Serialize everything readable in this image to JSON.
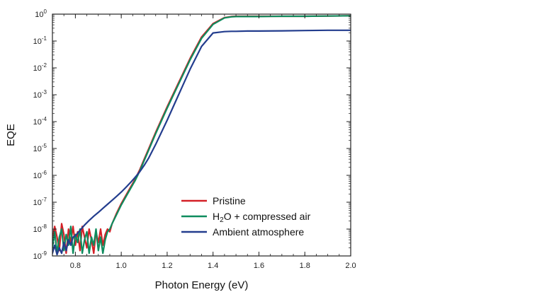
{
  "chart_data": {
    "type": "line",
    "xlabel": "Photon Energy (eV)",
    "ylabel": "EQE",
    "xlim": [
      0.7,
      2.0
    ],
    "ylim_log10": [
      -9,
      0
    ],
    "yscale": "log",
    "x_ticks": [
      {
        "value": 0.8,
        "label": "0.8"
      },
      {
        "value": 1.0,
        "label": "1.0"
      },
      {
        "value": 1.2,
        "label": "1.2"
      },
      {
        "value": 1.4,
        "label": "1.4"
      },
      {
        "value": 1.6,
        "label": "1.6"
      },
      {
        "value": 1.8,
        "label": "1.8"
      },
      {
        "value": 2.0,
        "label": "2.0"
      }
    ],
    "y_ticks": [
      {
        "exp": 0,
        "base": "10",
        "sup": "0"
      },
      {
        "exp": -1,
        "base": "10",
        "sup": "-1"
      },
      {
        "exp": -2,
        "base": "10",
        "sup": "-2"
      },
      {
        "exp": -3,
        "base": "10",
        "sup": "-3"
      },
      {
        "exp": -4,
        "base": "10",
        "sup": "-4"
      },
      {
        "exp": -5,
        "base": "10",
        "sup": "-5"
      },
      {
        "exp": -6,
        "base": "10",
        "sup": "-6"
      },
      {
        "exp": -7,
        "base": "10",
        "sup": "-7"
      },
      {
        "exp": -8,
        "base": "10",
        "sup": "-8"
      },
      {
        "exp": -9,
        "base": "10",
        "sup": "-9"
      }
    ],
    "grid": false,
    "legend_position": "bottom-right",
    "series": [
      {
        "name": "Pristine",
        "color": "#d42027",
        "x": [
          0.7,
          0.71,
          0.72,
          0.73,
          0.74,
          0.75,
          0.76,
          0.77,
          0.78,
          0.79,
          0.8,
          0.81,
          0.82,
          0.83,
          0.84,
          0.85,
          0.86,
          0.87,
          0.88,
          0.89,
          0.9,
          0.91,
          0.92,
          0.93,
          0.94,
          0.95,
          0.96,
          0.98,
          1.0,
          1.02,
          1.04,
          1.06,
          1.08,
          1.1,
          1.12,
          1.15,
          1.2,
          1.25,
          1.3,
          1.35,
          1.4,
          1.45,
          1.48,
          1.5,
          1.55,
          1.6,
          1.7,
          1.8,
          1.9,
          2.0
        ],
        "y": [
          -8.4,
          -7.9,
          -8.3,
          -8.8,
          -7.8,
          -8.2,
          -8.9,
          -8.0,
          -8.5,
          -7.9,
          -8.6,
          -8.1,
          -8.8,
          -7.9,
          -8.3,
          -8.7,
          -8.0,
          -8.4,
          -8.9,
          -8.1,
          -8.5,
          -8.0,
          -8.6,
          -8.2,
          -8.0,
          -8.1,
          -7.8,
          -7.4,
          -7.05,
          -6.75,
          -6.45,
          -6.15,
          -5.8,
          -5.4,
          -5.0,
          -4.4,
          -3.45,
          -2.55,
          -1.65,
          -0.85,
          -0.35,
          -0.13,
          -0.09,
          -0.08,
          -0.08,
          -0.08,
          -0.08,
          -0.08,
          -0.07,
          -0.06
        ]
      },
      {
        "name": "H2O + compressed air",
        "color": "#0e8c5e",
        "x": [
          0.7,
          0.71,
          0.72,
          0.73,
          0.74,
          0.75,
          0.76,
          0.77,
          0.78,
          0.79,
          0.8,
          0.81,
          0.82,
          0.83,
          0.84,
          0.85,
          0.86,
          0.87,
          0.88,
          0.89,
          0.9,
          0.91,
          0.92,
          0.93,
          0.94,
          0.95,
          0.96,
          0.98,
          1.0,
          1.02,
          1.04,
          1.06,
          1.08,
          1.1,
          1.12,
          1.15,
          1.2,
          1.25,
          1.3,
          1.35,
          1.4,
          1.45,
          1.48,
          1.5,
          1.55,
          1.6,
          1.7,
          1.8,
          1.9,
          2.0
        ],
        "y": [
          -8.7,
          -8.1,
          -8.9,
          -8.3,
          -8.0,
          -8.8,
          -8.2,
          -8.6,
          -7.9,
          -8.9,
          -8.2,
          -8.5,
          -8.0,
          -8.9,
          -8.4,
          -8.1,
          -8.9,
          -8.3,
          -8.6,
          -8.0,
          -8.8,
          -8.3,
          -8.9,
          -8.4,
          -8.1,
          -8.0,
          -7.8,
          -7.45,
          -7.1,
          -6.8,
          -6.5,
          -6.2,
          -5.85,
          -5.45,
          -5.05,
          -4.45,
          -3.5,
          -2.6,
          -1.7,
          -0.9,
          -0.38,
          -0.14,
          -0.1,
          -0.09,
          -0.09,
          -0.09,
          -0.08,
          -0.08,
          -0.07,
          -0.06
        ]
      },
      {
        "name": "Ambient atmosphere",
        "color": "#233d8e",
        "x": [
          0.7,
          0.71,
          0.72,
          0.73,
          0.74,
          0.75,
          0.76,
          0.77,
          0.78,
          0.79,
          0.8,
          0.82,
          0.84,
          0.86,
          0.88,
          0.9,
          0.92,
          0.94,
          0.96,
          0.98,
          1.0,
          1.02,
          1.04,
          1.06,
          1.08,
          1.1,
          1.12,
          1.15,
          1.2,
          1.25,
          1.3,
          1.35,
          1.4,
          1.45,
          1.48,
          1.5,
          1.55,
          1.6,
          1.7,
          1.8,
          1.9,
          2.0
        ],
        "y": [
          -8.9,
          -8.6,
          -8.95,
          -8.7,
          -8.9,
          -8.5,
          -8.8,
          -8.4,
          -8.6,
          -8.3,
          -8.25,
          -8.05,
          -7.85,
          -7.68,
          -7.52,
          -7.38,
          -7.23,
          -7.08,
          -6.93,
          -6.78,
          -6.62,
          -6.45,
          -6.27,
          -6.08,
          -5.87,
          -5.63,
          -5.35,
          -4.85,
          -3.95,
          -3.0,
          -2.05,
          -1.2,
          -0.7,
          -0.65,
          -0.64,
          -0.64,
          -0.63,
          -0.63,
          -0.62,
          -0.61,
          -0.6,
          -0.6
        ]
      }
    ]
  },
  "legend": {
    "items": [
      {
        "label": "Pristine",
        "color": "#d42027"
      },
      {
        "label_pre": "H",
        "label_sub": "2",
        "label_post": "O + compressed air",
        "color": "#0e8c5e"
      },
      {
        "label": "Ambient atmosphere",
        "color": "#233d8e"
      }
    ]
  }
}
